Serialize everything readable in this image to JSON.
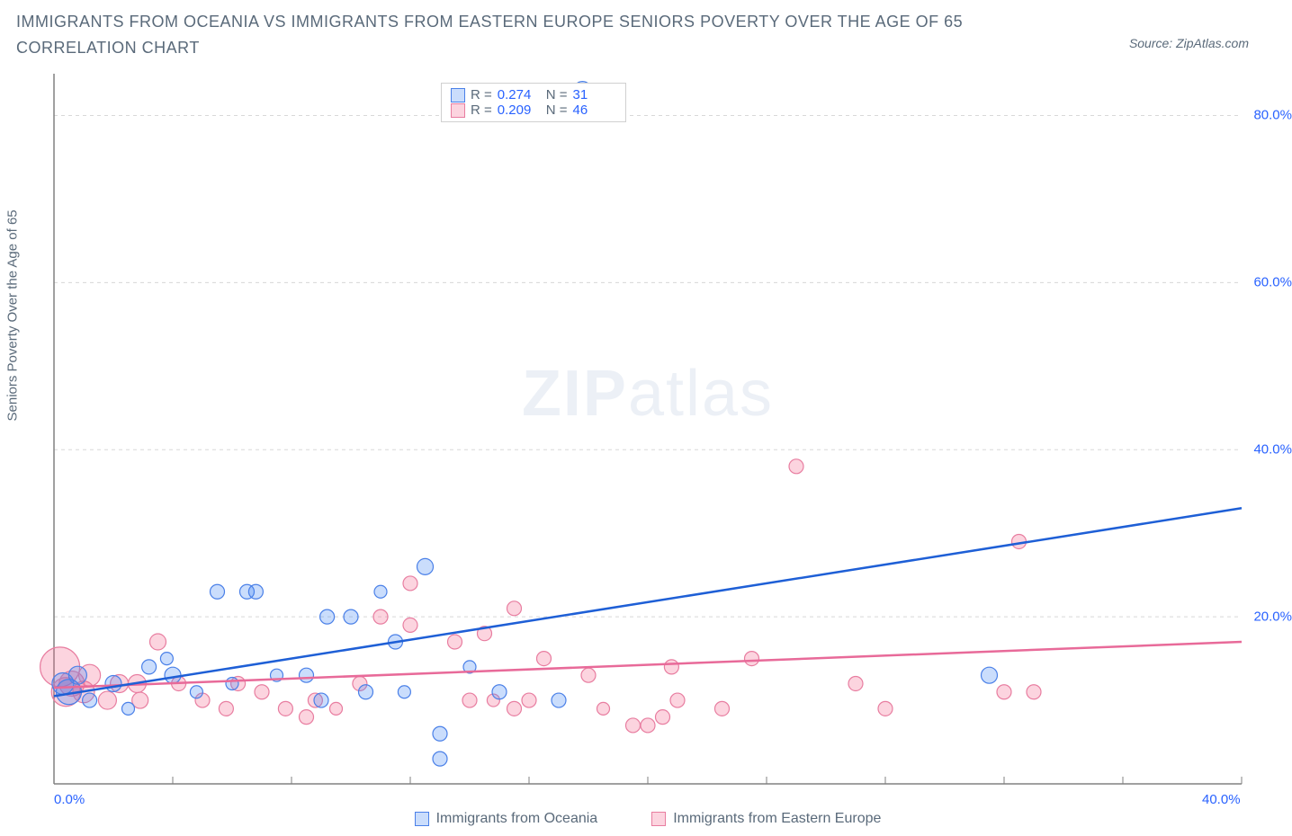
{
  "title": "IMMIGRANTS FROM OCEANIA VS IMMIGRANTS FROM EASTERN EUROPE SENIORS POVERTY OVER THE AGE OF 65 CORRELATION CHART",
  "source": "Source: ZipAtlas.com",
  "y_axis_label": "Seniors Poverty Over the Age of 65",
  "watermark_a": "ZIP",
  "watermark_b": "atlas",
  "colors": {
    "series_a_fill": "rgba(66,133,244,0.28)",
    "series_a_stroke": "#4a80e8",
    "series_b_fill": "rgba(244,100,140,0.28)",
    "series_b_stroke": "#e87da0",
    "trend_a": "#1e5fd6",
    "trend_b": "#e86a99",
    "axis": "#808080",
    "grid": "#d8d8d8",
    "tick_text": "#2962ff",
    "label_text": "#5a6a7a"
  },
  "x_axis": {
    "min": 0,
    "max": 40,
    "ticks": [
      0,
      4,
      8,
      12,
      16,
      20,
      24,
      28,
      32,
      36,
      40
    ]
  },
  "y_axis": {
    "min": 0,
    "max": 85,
    "ticks": [
      20,
      40,
      60,
      80
    ]
  },
  "legend_top": {
    "r_label": "R =",
    "n_label": "N =",
    "series": [
      {
        "r": "0.274",
        "n": "31",
        "swatch": "a"
      },
      {
        "r": "0.209",
        "n": "46",
        "swatch": "b"
      }
    ]
  },
  "legend_bottom": [
    {
      "label": "Immigrants from Oceania",
      "swatch": "a"
    },
    {
      "label": "Immigrants from Eastern Europe",
      "swatch": "b"
    }
  ],
  "x_tick_labels": [
    {
      "pos": 0,
      "text": "0.0%"
    },
    {
      "pos": 40,
      "text": "40.0%"
    }
  ],
  "y_tick_labels": [
    {
      "pos": 20,
      "text": "20.0%"
    },
    {
      "pos": 40,
      "text": "40.0%"
    },
    {
      "pos": 60,
      "text": "60.0%"
    },
    {
      "pos": 80,
      "text": "80.0%"
    }
  ],
  "trend_lines": {
    "a": {
      "x1": 0,
      "y1": 10.5,
      "x2": 40,
      "y2": 33
    },
    "b": {
      "x1": 0,
      "y1": 11.5,
      "x2": 40,
      "y2": 17
    }
  },
  "series_a_points": [
    {
      "x": 0.3,
      "y": 12,
      "r": 12
    },
    {
      "x": 0.5,
      "y": 11,
      "r": 14
    },
    {
      "x": 0.8,
      "y": 13,
      "r": 10
    },
    {
      "x": 1.2,
      "y": 10,
      "r": 8
    },
    {
      "x": 2.0,
      "y": 12,
      "r": 9
    },
    {
      "x": 2.5,
      "y": 9,
      "r": 7
    },
    {
      "x": 3.2,
      "y": 14,
      "r": 8
    },
    {
      "x": 4.0,
      "y": 13,
      "r": 9
    },
    {
      "x": 4.8,
      "y": 11,
      "r": 7
    },
    {
      "x": 5.5,
      "y": 23,
      "r": 8
    },
    {
      "x": 6.5,
      "y": 23,
      "r": 8
    },
    {
      "x": 6.8,
      "y": 23,
      "r": 8
    },
    {
      "x": 6.0,
      "y": 12,
      "r": 7
    },
    {
      "x": 7.5,
      "y": 13,
      "r": 7
    },
    {
      "x": 8.5,
      "y": 13,
      "r": 8
    },
    {
      "x": 9.2,
      "y": 20,
      "r": 8
    },
    {
      "x": 9.0,
      "y": 10,
      "r": 8
    },
    {
      "x": 10.0,
      "y": 20,
      "r": 8
    },
    {
      "x": 10.5,
      "y": 11,
      "r": 8
    },
    {
      "x": 11.5,
      "y": 17,
      "r": 8
    },
    {
      "x": 11.8,
      "y": 11,
      "r": 7
    },
    {
      "x": 12.5,
      "y": 26,
      "r": 9
    },
    {
      "x": 13.0,
      "y": 6,
      "r": 8
    },
    {
      "x": 13.0,
      "y": 3,
      "r": 8
    },
    {
      "x": 14.0,
      "y": 14,
      "r": 7
    },
    {
      "x": 15.0,
      "y": 11,
      "r": 8
    },
    {
      "x": 17.0,
      "y": 10,
      "r": 8
    },
    {
      "x": 17.8,
      "y": 83,
      "r": 10
    },
    {
      "x": 31.5,
      "y": 13,
      "r": 9
    },
    {
      "x": 11.0,
      "y": 23,
      "r": 7
    },
    {
      "x": 3.8,
      "y": 15,
      "r": 7
    }
  ],
  "series_b_points": [
    {
      "x": 0.2,
      "y": 14,
      "r": 22
    },
    {
      "x": 0.4,
      "y": 11,
      "r": 16
    },
    {
      "x": 0.6,
      "y": 12,
      "r": 14
    },
    {
      "x": 1.0,
      "y": 11,
      "r": 12
    },
    {
      "x": 1.2,
      "y": 13,
      "r": 12
    },
    {
      "x": 1.8,
      "y": 10,
      "r": 10
    },
    {
      "x": 2.2,
      "y": 12,
      "r": 10
    },
    {
      "x": 2.8,
      "y": 12,
      "r": 10
    },
    {
      "x": 3.5,
      "y": 17,
      "r": 9
    },
    {
      "x": 2.9,
      "y": 10,
      "r": 9
    },
    {
      "x": 4.2,
      "y": 12,
      "r": 8
    },
    {
      "x": 5.0,
      "y": 10,
      "r": 8
    },
    {
      "x": 5.8,
      "y": 9,
      "r": 8
    },
    {
      "x": 6.2,
      "y": 12,
      "r": 8
    },
    {
      "x": 7.0,
      "y": 11,
      "r": 8
    },
    {
      "x": 7.8,
      "y": 9,
      "r": 8
    },
    {
      "x": 8.8,
      "y": 10,
      "r": 8
    },
    {
      "x": 8.5,
      "y": 8,
      "r": 8
    },
    {
      "x": 9.5,
      "y": 9,
      "r": 7
    },
    {
      "x": 10.3,
      "y": 12,
      "r": 8
    },
    {
      "x": 11.0,
      "y": 20,
      "r": 8
    },
    {
      "x": 12.0,
      "y": 24,
      "r": 8
    },
    {
      "x": 12.0,
      "y": 19,
      "r": 8
    },
    {
      "x": 13.5,
      "y": 17,
      "r": 8
    },
    {
      "x": 14.0,
      "y": 10,
      "r": 8
    },
    {
      "x": 14.5,
      "y": 18,
      "r": 8
    },
    {
      "x": 15.5,
      "y": 9,
      "r": 8
    },
    {
      "x": 15.5,
      "y": 21,
      "r": 8
    },
    {
      "x": 16.0,
      "y": 10,
      "r": 8
    },
    {
      "x": 16.5,
      "y": 15,
      "r": 8
    },
    {
      "x": 18.0,
      "y": 13,
      "r": 8
    },
    {
      "x": 19.5,
      "y": 7,
      "r": 8
    },
    {
      "x": 20.0,
      "y": 7,
      "r": 8
    },
    {
      "x": 20.5,
      "y": 8,
      "r": 8
    },
    {
      "x": 20.8,
      "y": 14,
      "r": 8
    },
    {
      "x": 21.0,
      "y": 10,
      "r": 8
    },
    {
      "x": 22.5,
      "y": 9,
      "r": 8
    },
    {
      "x": 23.5,
      "y": 15,
      "r": 8
    },
    {
      "x": 25.0,
      "y": 38,
      "r": 8
    },
    {
      "x": 27.0,
      "y": 12,
      "r": 8
    },
    {
      "x": 28.0,
      "y": 9,
      "r": 8
    },
    {
      "x": 32.0,
      "y": 11,
      "r": 8
    },
    {
      "x": 32.5,
      "y": 29,
      "r": 8
    },
    {
      "x": 33.0,
      "y": 11,
      "r": 8
    },
    {
      "x": 14.8,
      "y": 10,
      "r": 7
    },
    {
      "x": 18.5,
      "y": 9,
      "r": 7
    }
  ]
}
